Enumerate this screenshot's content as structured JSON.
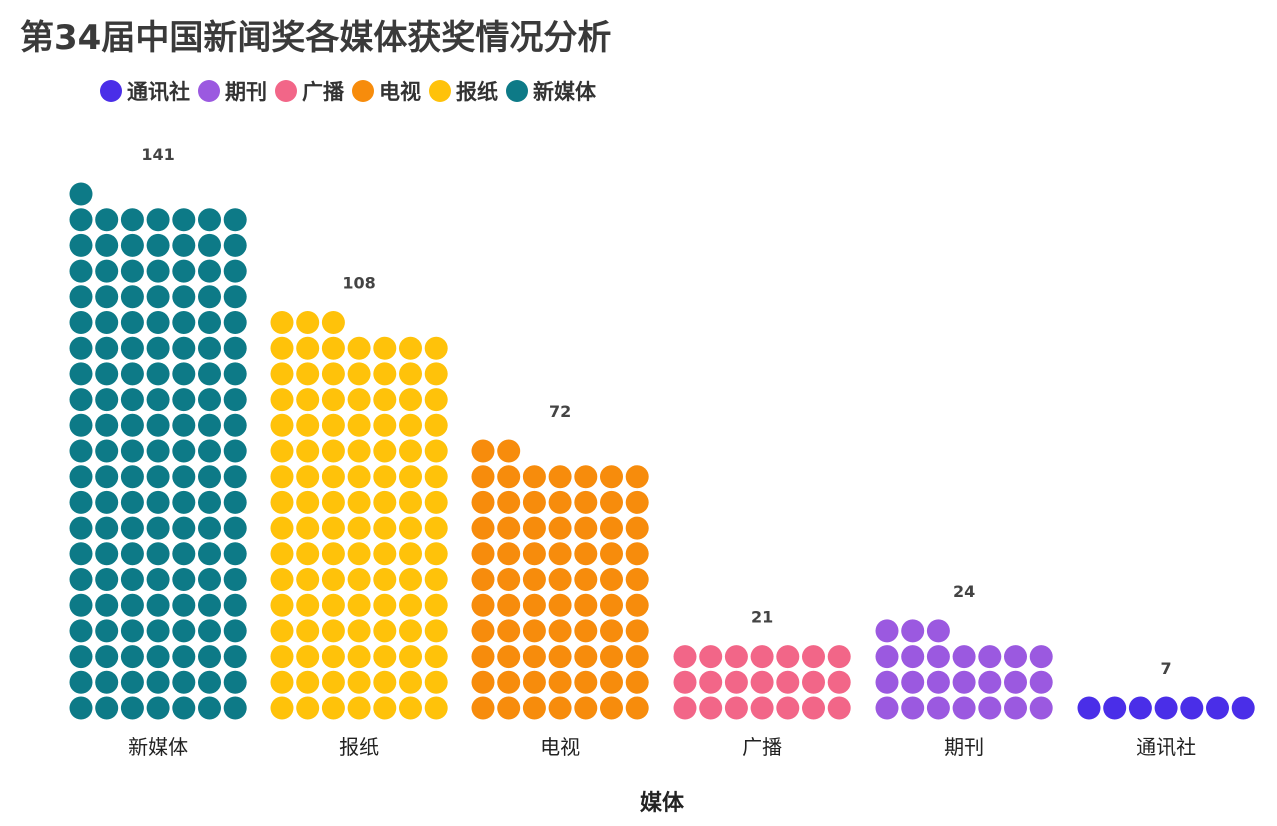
{
  "chart_data": {
    "type": "bar",
    "title": "第34届中国新闻奖各媒体获奖情况分析",
    "xlabel": "媒体",
    "ylabel": "",
    "style": "waffle-dot-columns",
    "dots_per_row": 7,
    "legend": {
      "position": "top-left",
      "entries": [
        {
          "name": "通讯社",
          "color": "#4a2ee8"
        },
        {
          "name": "期刊",
          "color": "#9b59e0"
        },
        {
          "name": "广播",
          "color": "#f26688"
        },
        {
          "name": "电视",
          "color": "#f78c0c"
        },
        {
          "name": "报纸",
          "color": "#ffc20a"
        },
        {
          "name": "新媒体",
          "color": "#0d7a87"
        }
      ]
    },
    "categories": [
      "新媒体",
      "报纸",
      "电视",
      "广播",
      "期刊",
      "通讯社"
    ],
    "values": [
      141,
      108,
      72,
      21,
      24,
      7
    ],
    "colors": [
      "#0d7a87",
      "#ffc20a",
      "#f78c0c",
      "#f26688",
      "#9b59e0",
      "#4a2ee8"
    ]
  }
}
